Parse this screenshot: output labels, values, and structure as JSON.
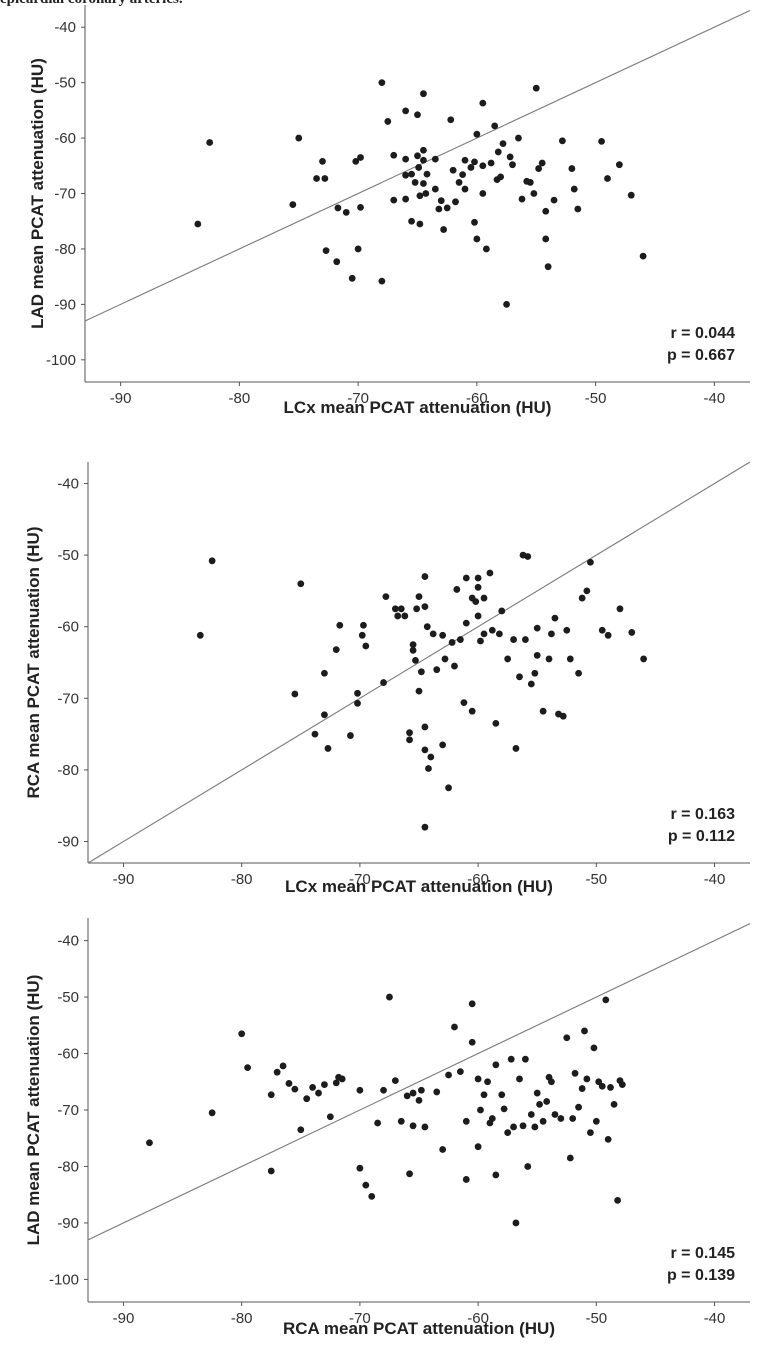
{
  "caption": "epicardial coronary arteries.",
  "chart_data": [
    {
      "type": "scatter",
      "title": "",
      "xlabel": "LCx mean PCAT attenuation (HU)",
      "ylabel": "LAD mean PCAT attenuation (HU)",
      "xlim": [
        -93,
        -37
      ],
      "ylim": [
        -104,
        -36
      ],
      "xticks": [
        -90,
        -80,
        -70,
        -60,
        -50,
        -40
      ],
      "yticks": [
        -40,
        -50,
        -60,
        -70,
        -80,
        -90,
        -100
      ],
      "reference_line": "identity (y = x)",
      "r_label": "r = 0.044",
      "p_label": "p = 0.667",
      "points": [
        [
          -83.5,
          -75.5
        ],
        [
          -82.5,
          -60.8
        ],
        [
          -75.5,
          -72
        ],
        [
          -75,
          -60
        ],
        [
          -73,
          -64.2
        ],
        [
          -73.5,
          -67.3
        ],
        [
          -72.8,
          -67.3
        ],
        [
          -71.7,
          -72.6
        ],
        [
          -71,
          -73.4
        ],
        [
          -72.7,
          -80.3
        ],
        [
          -71.8,
          -82.3
        ],
        [
          -70.5,
          -85.3
        ],
        [
          -70.2,
          -64.2
        ],
        [
          -69.8,
          -63.5
        ],
        [
          -70,
          -80
        ],
        [
          -69.8,
          -72.5
        ],
        [
          -68,
          -50
        ],
        [
          -68,
          -85.8
        ],
        [
          -67.5,
          -57
        ],
        [
          -67,
          -63.1
        ],
        [
          -67,
          -71.2
        ],
        [
          -66,
          -55.1
        ],
        [
          -66,
          -63.8
        ],
        [
          -66,
          -66.7
        ],
        [
          -66,
          -71
        ],
        [
          -65.5,
          -75
        ],
        [
          -65.5,
          -66.5
        ],
        [
          -65.2,
          -68
        ],
        [
          -65,
          -55.8
        ],
        [
          -65,
          -63.2
        ],
        [
          -64.9,
          -65.3
        ],
        [
          -64.8,
          -70.4
        ],
        [
          -64.5,
          -52
        ],
        [
          -64.5,
          -62.2
        ],
        [
          -64.5,
          -64
        ],
        [
          -64.5,
          -68.2
        ],
        [
          -64.2,
          -66.5
        ],
        [
          -64.3,
          -70
        ],
        [
          -64.8,
          -75.5
        ],
        [
          -63.5,
          -69.2
        ],
        [
          -63.5,
          -63.8
        ],
        [
          -63,
          -71.3
        ],
        [
          -63.2,
          -72.8
        ],
        [
          -62.8,
          -76.5
        ],
        [
          -62.5,
          -72.6
        ],
        [
          -62.2,
          -56.7
        ],
        [
          -62,
          -65.8
        ],
        [
          -61.8,
          -71.5
        ],
        [
          -61.5,
          -68
        ],
        [
          -61.2,
          -66.6
        ],
        [
          -61,
          -64
        ],
        [
          -61,
          -69.2
        ],
        [
          -60.5,
          -65.3
        ],
        [
          -60.2,
          -75.2
        ],
        [
          -60.2,
          -64.3
        ],
        [
          -60,
          -78.2
        ],
        [
          -60,
          -59.3
        ],
        [
          -59.5,
          -53.7
        ],
        [
          -59.5,
          -65
        ],
        [
          -59.5,
          -70
        ],
        [
          -59.2,
          -80
        ],
        [
          -58.8,
          -64.5
        ],
        [
          -58.5,
          -57.8
        ],
        [
          -58.3,
          -67.5
        ],
        [
          -58.2,
          -62.5
        ],
        [
          -58,
          -67
        ],
        [
          -57.8,
          -61
        ],
        [
          -57.5,
          -90
        ],
        [
          -57.2,
          -63.4
        ],
        [
          -57,
          -64.8
        ],
        [
          -56.5,
          -60
        ],
        [
          -56.2,
          -71
        ],
        [
          -55.8,
          -67.8
        ],
        [
          -55.5,
          -68
        ],
        [
          -55.2,
          -70
        ],
        [
          -55,
          -51
        ],
        [
          -54.8,
          -65.5
        ],
        [
          -54.5,
          -64.5
        ],
        [
          -54.2,
          -73.2
        ],
        [
          -54.2,
          -78.2
        ],
        [
          -54,
          -83.2
        ],
        [
          -53.5,
          -71.2
        ],
        [
          -52.8,
          -60.5
        ],
        [
          -52,
          -65.5
        ],
        [
          -51.8,
          -69.2
        ],
        [
          -51.5,
          -72.8
        ],
        [
          -49.5,
          -60.6
        ],
        [
          -49,
          -67.3
        ],
        [
          -48,
          -64.8
        ],
        [
          -47,
          -70.3
        ],
        [
          -46,
          -81.3
        ]
      ]
    },
    {
      "type": "scatter",
      "title": "",
      "xlabel": "LCx mean PCAT attenuation (HU)",
      "ylabel": "RCA mean PCAT attenuation (HU)",
      "xlim": [
        -93,
        -37
      ],
      "ylim": [
        -93,
        -37
      ],
      "xticks": [
        -90,
        -80,
        -70,
        -60,
        -50,
        -40
      ],
      "yticks": [
        -40,
        -50,
        -60,
        -70,
        -80,
        -90
      ],
      "reference_line": "identity (y = x)",
      "r_label": "r = 0.163",
      "p_label": "p = 0.112",
      "points": [
        [
          -83.5,
          -61.2
        ],
        [
          -82.5,
          -50.8
        ],
        [
          -75.5,
          -69.4
        ],
        [
          -75,
          -54
        ],
        [
          -73.8,
          -75
        ],
        [
          -73,
          -72.3
        ],
        [
          -73,
          -66.5
        ],
        [
          -72.7,
          -77
        ],
        [
          -72,
          -63.2
        ],
        [
          -71.7,
          -59.8
        ],
        [
          -70.8,
          -75.2
        ],
        [
          -70.2,
          -69.3
        ],
        [
          -70.2,
          -70.7
        ],
        [
          -69.8,
          -61.2
        ],
        [
          -69.7,
          -59.8
        ],
        [
          -69.5,
          -62.7
        ],
        [
          -68,
          -67.8
        ],
        [
          -67.8,
          -55.8
        ],
        [
          -67,
          -57.5
        ],
        [
          -66.8,
          -58.5
        ],
        [
          -66.5,
          -57.5
        ],
        [
          -66.2,
          -58.5
        ],
        [
          -65.8,
          -74.8
        ],
        [
          -65.8,
          -75.8
        ],
        [
          -65.5,
          -62.5
        ],
        [
          -65.5,
          -63.3
        ],
        [
          -65.3,
          -64.7
        ],
        [
          -65.2,
          -57.5
        ],
        [
          -65,
          -69
        ],
        [
          -65,
          -55.8
        ],
        [
          -64.8,
          -66.3
        ],
        [
          -64.5,
          -77.2
        ],
        [
          -64.5,
          -74
        ],
        [
          -64.5,
          -53
        ],
        [
          -64.5,
          -57.2
        ],
        [
          -64.3,
          -60
        ],
        [
          -64.5,
          -88
        ],
        [
          -64.2,
          -79.8
        ],
        [
          -64,
          -78.2
        ],
        [
          -63.8,
          -61
        ],
        [
          -63.5,
          -66
        ],
        [
          -63,
          -76.5
        ],
        [
          -63,
          -61.2
        ],
        [
          -62.8,
          -64.5
        ],
        [
          -62.5,
          -82.5
        ],
        [
          -62.2,
          -62.2
        ],
        [
          -62,
          -65.5
        ],
        [
          -61.8,
          -54.8
        ],
        [
          -61.5,
          -61.8
        ],
        [
          -61.2,
          -70.6
        ],
        [
          -61,
          -53.2
        ],
        [
          -61,
          -59.5
        ],
        [
          -60.5,
          -71.8
        ],
        [
          -60.5,
          -56
        ],
        [
          -60.2,
          -56.5
        ],
        [
          -60,
          -58.5
        ],
        [
          -60,
          -54.5
        ],
        [
          -60,
          -53.2
        ],
        [
          -59.8,
          -62
        ],
        [
          -59.5,
          -56
        ],
        [
          -59.5,
          -61
        ],
        [
          -59,
          -52.5
        ],
        [
          -58.8,
          -60.5
        ],
        [
          -58.5,
          -73.5
        ],
        [
          -58.2,
          -61
        ],
        [
          -58,
          -57.8
        ],
        [
          -57.5,
          -64.5
        ],
        [
          -57,
          -61.8
        ],
        [
          -56.8,
          -77
        ],
        [
          -56.5,
          -67
        ],
        [
          -56.2,
          -50
        ],
        [
          -56,
          -61.8
        ],
        [
          -55.8,
          -50.2
        ],
        [
          -55.5,
          -68
        ],
        [
          -55.2,
          -66.5
        ],
        [
          -55,
          -64
        ],
        [
          -55,
          -60.2
        ],
        [
          -54.5,
          -71.8
        ],
        [
          -54,
          -64.5
        ],
        [
          -53.8,
          -61
        ],
        [
          -53.5,
          -58.8
        ],
        [
          -53.2,
          -72.2
        ],
        [
          -52.8,
          -72.5
        ],
        [
          -52.5,
          -60.5
        ],
        [
          -52.2,
          -64.5
        ],
        [
          -51.5,
          -66.5
        ],
        [
          -51.2,
          -56
        ],
        [
          -50.8,
          -55
        ],
        [
          -50.5,
          -51
        ],
        [
          -49.5,
          -60.5
        ],
        [
          -49,
          -61.2
        ],
        [
          -48,
          -57.5
        ],
        [
          -47,
          -60.8
        ],
        [
          -46,
          -64.5
        ]
      ]
    },
    {
      "type": "scatter",
      "title": "",
      "xlabel": "RCA mean PCAT attenuation (HU)",
      "ylabel": "LAD mean PCAT attenuation (HU)",
      "xlim": [
        -93,
        -37
      ],
      "ylim": [
        -104,
        -36
      ],
      "xticks": [
        -90,
        -80,
        -70,
        -60,
        -50,
        -40
      ],
      "yticks": [
        -40,
        -50,
        -60,
        -70,
        -80,
        -90,
        -100
      ],
      "reference_line": "identity (y = x)",
      "r_label": "r = 0.145",
      "p_label": "p = 0.139",
      "points": [
        [
          -87.8,
          -75.8
        ],
        [
          -82.5,
          -70.5
        ],
        [
          -80,
          -56.5
        ],
        [
          -79.5,
          -62.5
        ],
        [
          -77.5,
          -80.8
        ],
        [
          -77.5,
          -67.3
        ],
        [
          -77,
          -63.3
        ],
        [
          -76.5,
          -62.2
        ],
        [
          -76,
          -65.3
        ],
        [
          -75.5,
          -66.3
        ],
        [
          -75,
          -73.5
        ],
        [
          -74.5,
          -68
        ],
        [
          -74,
          -66
        ],
        [
          -73.5,
          -67
        ],
        [
          -73,
          -65.5
        ],
        [
          -72.5,
          -71.2
        ],
        [
          -72,
          -65.2
        ],
        [
          -71.8,
          -64.2
        ],
        [
          -71.5,
          -64.5
        ],
        [
          -70,
          -80.3
        ],
        [
          -70,
          -66.5
        ],
        [
          -69.5,
          -83.3
        ],
        [
          -69,
          -85.3
        ],
        [
          -68.5,
          -72.3
        ],
        [
          -68,
          -66.5
        ],
        [
          -67,
          -64.8
        ],
        [
          -67.5,
          -50
        ],
        [
          -66.5,
          -72
        ],
        [
          -66,
          -67.5
        ],
        [
          -65.8,
          -81.3
        ],
        [
          -65.5,
          -72.8
        ],
        [
          -65.5,
          -67
        ],
        [
          -65,
          -68.3
        ],
        [
          -64.8,
          -66.5
        ],
        [
          -64.5,
          -73
        ],
        [
          -63.5,
          -66.8
        ],
        [
          -63,
          -77
        ],
        [
          -62.5,
          -63.8
        ],
        [
          -62,
          -55.3
        ],
        [
          -61.5,
          -63.2
        ],
        [
          -61,
          -72
        ],
        [
          -61,
          -82.3
        ],
        [
          -60.5,
          -58
        ],
        [
          -60.5,
          -51.2
        ],
        [
          -60,
          -76.5
        ],
        [
          -60,
          -64.5
        ],
        [
          -59.8,
          -70
        ],
        [
          -59.5,
          -67.3
        ],
        [
          -59.2,
          -65
        ],
        [
          -59,
          -72.3
        ],
        [
          -58.8,
          -71.5
        ],
        [
          -58.5,
          -81.5
        ],
        [
          -58.5,
          -62
        ],
        [
          -58,
          -67.3
        ],
        [
          -57.8,
          -69.8
        ],
        [
          -57.5,
          -74
        ],
        [
          -57.2,
          -61
        ],
        [
          -57,
          -73
        ],
        [
          -56.8,
          -90
        ],
        [
          -56.5,
          -64.5
        ],
        [
          -56.2,
          -72.8
        ],
        [
          -56,
          -61
        ],
        [
          -55.8,
          -80
        ],
        [
          -55.5,
          -70.8
        ],
        [
          -55.2,
          -73
        ],
        [
          -55,
          -67
        ],
        [
          -54.8,
          -69
        ],
        [
          -54.5,
          -72
        ],
        [
          -54.2,
          -68.5
        ],
        [
          -54,
          -64.2
        ],
        [
          -53.8,
          -65
        ],
        [
          -53.5,
          -70.8
        ],
        [
          -53,
          -71.5
        ],
        [
          -52.5,
          -57.2
        ],
        [
          -52.2,
          -78.5
        ],
        [
          -52,
          -71.5
        ],
        [
          -51.8,
          -63.5
        ],
        [
          -51.5,
          -69.5
        ],
        [
          -51.2,
          -66.2
        ],
        [
          -51,
          -56
        ],
        [
          -50.8,
          -64.5
        ],
        [
          -50.5,
          -74
        ],
        [
          -50.2,
          -59
        ],
        [
          -50,
          -72
        ],
        [
          -49.8,
          -65
        ],
        [
          -49.5,
          -65.8
        ],
        [
          -49.2,
          -50.5
        ],
        [
          -49,
          -75.2
        ],
        [
          -48.8,
          -66
        ],
        [
          -48.5,
          -69
        ],
        [
          -48.2,
          -86
        ],
        [
          -48,
          -64.8
        ],
        [
          -47.8,
          -65.5
        ]
      ]
    }
  ]
}
